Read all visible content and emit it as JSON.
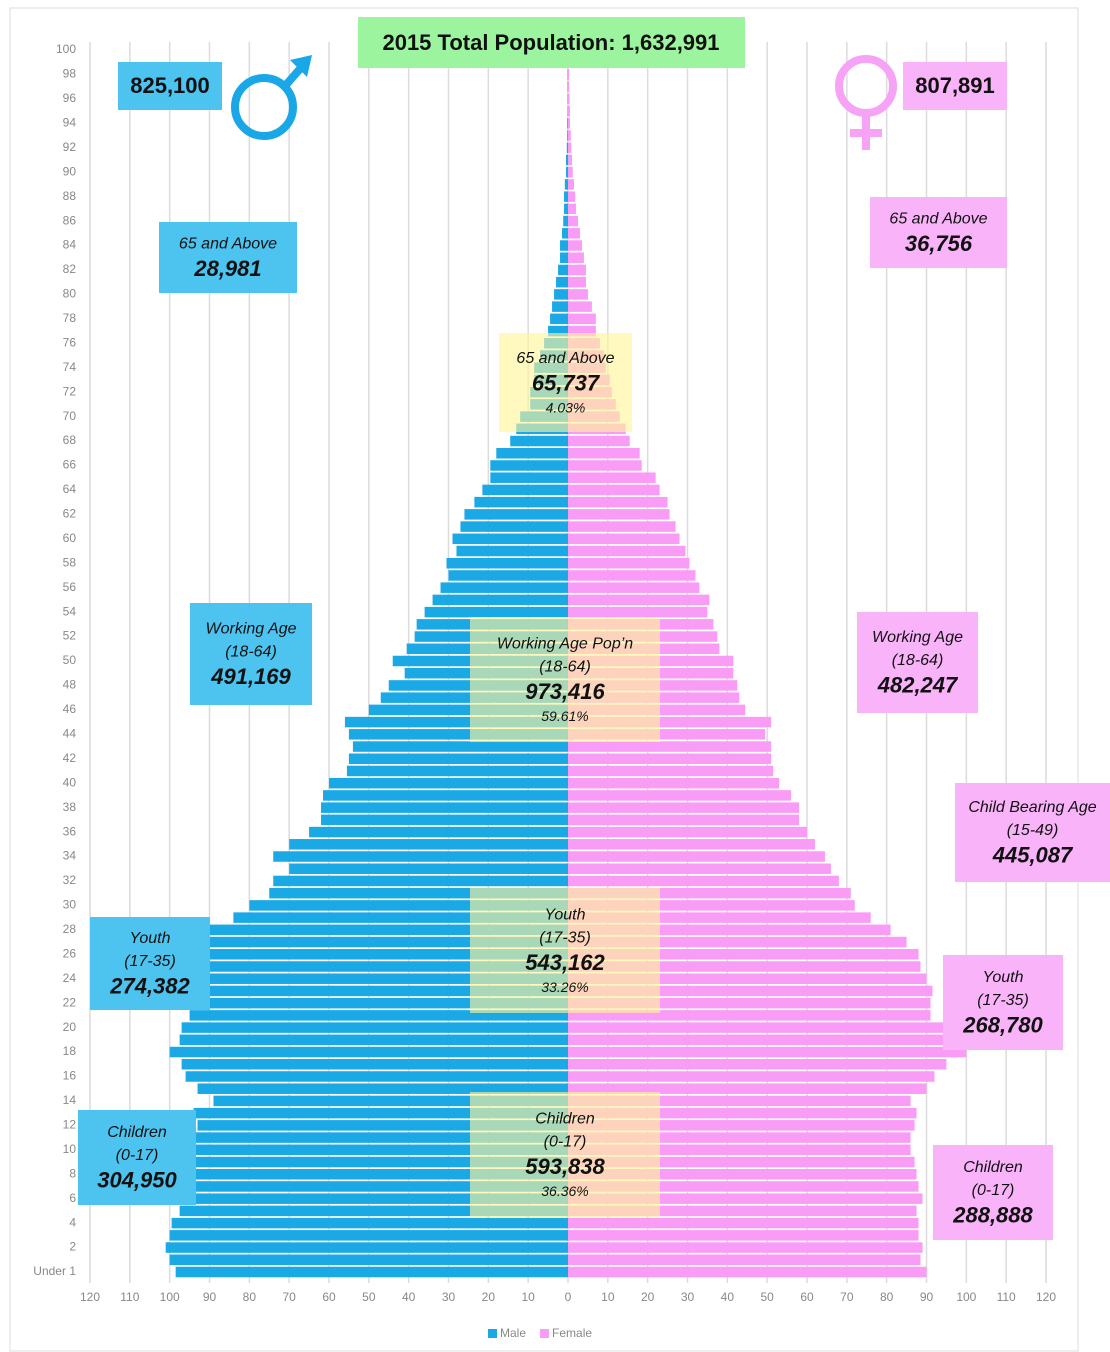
{
  "chart_data": {
    "type": "pyramid",
    "title": "2015 Total Population: 1,632,991",
    "title_color": "#9cf59e",
    "totals": [
      {
        "value": "825,100",
        "color": "#4dc3f0"
      },
      {
        "value": "807,891",
        "color": "#f9b3f9"
      }
    ],
    "categories": [
      "Under 1",
      null,
      "2",
      null,
      "4",
      null,
      "6",
      null,
      "8",
      null,
      "10",
      null,
      "12",
      null,
      "14",
      null,
      "16",
      null,
      "18",
      null,
      "20",
      null,
      "22",
      null,
      "24",
      null,
      "26",
      null,
      "28",
      null,
      "30",
      null,
      "32",
      null,
      "34",
      null,
      "36",
      null,
      "38",
      null,
      "40",
      null,
      "42",
      null,
      "44",
      null,
      "46",
      null,
      "48",
      null,
      "50",
      null,
      "52",
      null,
      "54",
      null,
      "56",
      null,
      "58",
      null,
      "60",
      null,
      "62",
      null,
      "64",
      null,
      "66",
      null,
      "68",
      null,
      "70",
      null,
      "72",
      null,
      "74",
      null,
      "76",
      null,
      "78",
      null,
      "80",
      null,
      "82",
      null,
      "84",
      null,
      "86",
      null,
      "88",
      null,
      "90",
      null,
      "92",
      null,
      "94",
      null,
      "96",
      null,
      "98",
      null,
      "100"
    ],
    "series": [
      {
        "name": "Male",
        "color": "#1ba9e6",
        "values": [
          -98.5,
          -100,
          -101,
          -100,
          -99.5,
          -97.5,
          -98,
          -97,
          -96,
          -96,
          -96,
          -95.5,
          -93,
          -94,
          -89,
          -93,
          -96,
          -97,
          -100,
          -97.5,
          -97,
          -95,
          -94,
          -95.5,
          -94,
          -93,
          -91.5,
          -91,
          -90,
          -84,
          -80,
          -75,
          -74,
          -70,
          -74,
          -70,
          -65,
          -62,
          -62,
          -61.5,
          -60,
          -55.5,
          -55,
          -54,
          -55,
          -56,
          -50,
          -47,
          -45,
          -41,
          -44,
          -40.5,
          -38.5,
          -38,
          -36,
          -34,
          -32,
          -30,
          -30.5,
          -28,
          -29,
          -27,
          -26,
          -23.5,
          -21.5,
          -19.5,
          -19.5,
          -18,
          -14.5,
          -13,
          -12,
          -9.5,
          -9.5,
          -8.5,
          -8.5,
          -7,
          -6,
          -5,
          -4.5,
          -4,
          -3.5,
          -3,
          -2.5,
          -2,
          -2,
          -1.5,
          -1.2,
          -1,
          -1,
          -0.8,
          -0.5,
          -0.5,
          -0.3,
          -0.2,
          -0.2,
          -0.1,
          -0.1,
          -0.1,
          -0.1,
          0,
          0
        ]
      },
      {
        "name": "Female",
        "color": "#f99cf6",
        "values": [
          90,
          88.5,
          89,
          88,
          88,
          87.5,
          89,
          88,
          87.5,
          87,
          86,
          86,
          87,
          87.5,
          86,
          90,
          92,
          95,
          100,
          98,
          95,
          91,
          91,
          91.5,
          90,
          88.5,
          88,
          85,
          81,
          76,
          72,
          71,
          68,
          66,
          64.5,
          62,
          60,
          58,
          58,
          56,
          53,
          51.5,
          51,
          51,
          49.5,
          51,
          44.5,
          43,
          42.5,
          41.5,
          41.5,
          38,
          37.5,
          36.5,
          35,
          35.5,
          33,
          32,
          30.5,
          29.5,
          28,
          27,
          25.5,
          25,
          23,
          22,
          18.5,
          18,
          15.5,
          14.5,
          13,
          12,
          11,
          10.5,
          9.5,
          9,
          8,
          7,
          7,
          6,
          5,
          4.5,
          4.5,
          4,
          3.5,
          3,
          2.5,
          2,
          1.8,
          1.5,
          1.2,
          1,
          0.8,
          0.7,
          0.5,
          0.5,
          0.4,
          0.3,
          0.3,
          0.2,
          0.2
        ]
      }
    ],
    "xlim": [
      -120,
      120
    ],
    "xticks": [
      {
        "value": -120,
        "label": "120"
      },
      {
        "value": -110,
        "label": "110"
      },
      {
        "value": -100,
        "label": "100"
      },
      {
        "value": -90,
        "label": "90"
      },
      {
        "value": -80,
        "label": "80"
      },
      {
        "value": -70,
        "label": "70"
      },
      {
        "value": -60,
        "label": "60"
      },
      {
        "value": -50,
        "label": "50"
      },
      {
        "value": -40,
        "label": "40"
      },
      {
        "value": -30,
        "label": "30"
      },
      {
        "value": -20,
        "label": "20"
      },
      {
        "value": -10,
        "label": "10"
      },
      0,
      10,
      20,
      30,
      40,
      50,
      60,
      70,
      80,
      90,
      100,
      110,
      120
    ],
    "grid": true,
    "legend": "bottom",
    "male_boxes": {
      "color": "#4dc3f0",
      "items": [
        {
          "label": "65 and Above",
          "value": "28,981"
        },
        {
          "label": "Working Age",
          "range": "(18-64)",
          "value": "491,169"
        },
        {
          "label": "Youth",
          "range": "(17-35)",
          "value": "274,382"
        },
        {
          "label": "Children",
          "range": "(0-17)",
          "value": "304,950"
        }
      ]
    },
    "female_boxes": {
      "color": "#f9b3f9",
      "items": [
        {
          "label": "65 and Above",
          "value": "36,756"
        },
        {
          "label": "Working Age",
          "range": "(18-64)",
          "value": "482,247"
        },
        {
          "label": "Child Bearing Age",
          "range": "(15-49)",
          "value": "445,087"
        },
        {
          "label": "Youth",
          "range": "(17-35)",
          "value": "268,780"
        },
        {
          "label": "Children",
          "range": "(0-17)",
          "value": "288,888"
        }
      ]
    },
    "center_boxes": {
      "color": "#fff59a",
      "items": [
        {
          "label": "65 and Above",
          "value": "65,737",
          "percent": "4.03%"
        },
        {
          "label": "Working Age Pop’n",
          "range": "(18-64)",
          "value": "973,416",
          "percent": "59.61%"
        },
        {
          "label": "Youth",
          "range": "(17-35)",
          "value": "543,162",
          "percent": "33.26%"
        },
        {
          "label": "Children",
          "range": "(0-17)",
          "value": "593,838",
          "percent": "36.36%"
        }
      ]
    }
  }
}
